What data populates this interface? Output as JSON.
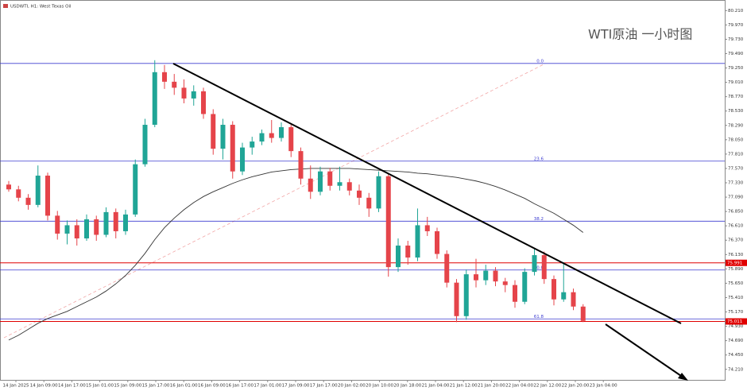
{
  "chart_data": {
    "type": "candlestick",
    "title": "USDWTI, H1: West Texas Oil",
    "annotation": "WTI原油 一小时图",
    "categories": [
      "14 Jan 2025",
      "14 Jan 09:00",
      "14 Jan 17:00",
      "15 Jan 01:00",
      "15 Jan 09:00",
      "15 Jan 17:00",
      "16 Jan 01:00",
      "16 Jan 09:00",
      "16 Jan 17:00",
      "17 Jan 01:00",
      "17 Jan 09:00",
      "17 Jan 17:00",
      "20 Jan 02:00",
      "20 Jan 10:00",
      "20 Jan 18:00",
      "21 Jan 04:00",
      "21 Jan 12:00",
      "21 Jan 20:00",
      "22 Jan 04:00",
      "22 Jan 12:00",
      "22 Jan 20:00",
      "23 Jan 04:00"
    ],
    "ylim": [
      74.034,
      80.387
    ],
    "yticks": [
      {
        "value": 80.21,
        "label": "80.210"
      },
      {
        "value": 79.97,
        "label": "79.970"
      },
      {
        "value": 79.73,
        "label": "79.730"
      },
      {
        "value": 79.49,
        "label": "79.490"
      },
      {
        "value": 79.25,
        "label": "79.250"
      },
      {
        "value": 79.01,
        "label": "79.010"
      },
      {
        "value": 78.77,
        "label": "78.770"
      },
      {
        "value": 78.53,
        "label": "78.530"
      },
      {
        "value": 78.29,
        "label": "78.290"
      },
      {
        "value": 78.05,
        "label": "78.050"
      },
      {
        "value": 77.81,
        "label": "77.810"
      },
      {
        "value": 77.57,
        "label": "77.570"
      },
      {
        "value": 77.33,
        "label": "77.330"
      },
      {
        "value": 77.09,
        "label": "77.090"
      },
      {
        "value": 76.85,
        "label": "76.850"
      },
      {
        "value": 76.61,
        "label": "76.610"
      },
      {
        "value": 76.37,
        "label": "76.370"
      },
      {
        "value": 76.13,
        "label": "76.130"
      },
      {
        "value": 75.89,
        "label": "75.890"
      },
      {
        "value": 75.65,
        "label": "75.650"
      },
      {
        "value": 75.41,
        "label": "75.410"
      },
      {
        "value": 75.17,
        "label": "75.170"
      },
      {
        "value": 74.93,
        "label": "74.930"
      },
      {
        "value": 74.69,
        "label": "74.690"
      },
      {
        "value": 74.45,
        "label": "74.450"
      },
      {
        "value": 74.21,
        "label": "74.210"
      }
    ],
    "up_color": "#20a596",
    "down_color": "#e5444a",
    "ohlc": [
      [
        77.3,
        77.36,
        77.18,
        77.22
      ],
      [
        77.22,
        77.28,
        77.02,
        77.08
      ],
      [
        77.08,
        77.14,
        76.88,
        76.96
      ],
      [
        76.96,
        77.62,
        76.92,
        77.45
      ],
      [
        77.45,
        77.5,
        76.7,
        76.78
      ],
      [
        76.78,
        76.86,
        76.38,
        76.48
      ],
      [
        76.48,
        76.7,
        76.3,
        76.62
      ],
      [
        76.62,
        76.72,
        76.28,
        76.4
      ],
      [
        76.4,
        76.8,
        76.36,
        76.72
      ],
      [
        76.72,
        76.78,
        76.36,
        76.46
      ],
      [
        76.46,
        76.92,
        76.42,
        76.84
      ],
      [
        76.84,
        76.9,
        76.4,
        76.52
      ],
      [
        76.52,
        76.88,
        76.46,
        76.8
      ],
      [
        76.8,
        77.72,
        76.76,
        77.64
      ],
      [
        77.64,
        78.4,
        77.6,
        78.3
      ],
      [
        78.3,
        79.38,
        78.26,
        79.18
      ],
      [
        79.18,
        79.3,
        78.9,
        79.02
      ],
      [
        79.02,
        79.15,
        78.8,
        78.92
      ],
      [
        78.92,
        79.06,
        78.66,
        78.74
      ],
      [
        78.74,
        78.96,
        78.62,
        78.86
      ],
      [
        78.86,
        78.92,
        78.4,
        78.48
      ],
      [
        78.48,
        78.56,
        77.8,
        77.9
      ],
      [
        77.9,
        78.4,
        77.72,
        78.3
      ],
      [
        78.3,
        78.36,
        77.4,
        77.52
      ],
      [
        77.52,
        78.0,
        77.46,
        77.92
      ],
      [
        77.92,
        78.1,
        77.8,
        78.02
      ],
      [
        78.02,
        78.22,
        77.96,
        78.16
      ],
      [
        78.16,
        78.38,
        78.0,
        78.08
      ],
      [
        78.08,
        78.34,
        78.02,
        78.26
      ],
      [
        78.26,
        78.3,
        77.76,
        77.86
      ],
      [
        77.86,
        77.92,
        77.3,
        77.4
      ],
      [
        77.4,
        77.62,
        77.06,
        77.18
      ],
      [
        77.18,
        77.6,
        77.12,
        77.52
      ],
      [
        77.52,
        77.58,
        77.2,
        77.28
      ],
      [
        77.28,
        77.6,
        77.2,
        77.34
      ],
      [
        77.34,
        77.4,
        77.12,
        77.2
      ],
      [
        77.2,
        77.3,
        76.96,
        77.08
      ],
      [
        77.08,
        77.16,
        76.76,
        76.9
      ],
      [
        76.9,
        77.52,
        76.84,
        77.44
      ],
      [
        77.44,
        77.48,
        75.76,
        75.92
      ],
      [
        75.92,
        76.4,
        75.84,
        76.28
      ],
      [
        76.28,
        76.36,
        75.96,
        76.08
      ],
      [
        76.08,
        76.9,
        76.02,
        76.62
      ],
      [
        76.62,
        76.76,
        76.44,
        76.52
      ],
      [
        76.52,
        76.58,
        76.06,
        76.14
      ],
      [
        76.14,
        76.2,
        75.58,
        75.66
      ],
      [
        75.66,
        75.72,
        75.0,
        75.1
      ],
      [
        75.1,
        75.88,
        75.04,
        75.8
      ],
      [
        75.8,
        76.06,
        75.58,
        75.7
      ],
      [
        75.7,
        75.96,
        75.62,
        75.86
      ],
      [
        75.86,
        75.92,
        75.6,
        75.68
      ],
      [
        75.68,
        75.74,
        75.5,
        75.62
      ],
      [
        75.62,
        75.7,
        75.24,
        75.34
      ],
      [
        75.34,
        75.9,
        75.3,
        75.84
      ],
      [
        75.84,
        76.24,
        75.78,
        76.12
      ],
      [
        76.12,
        76.18,
        75.64,
        75.72
      ],
      [
        75.72,
        75.78,
        75.28,
        75.38
      ],
      [
        75.38,
        76.0,
        75.34,
        75.5
      ],
      [
        75.5,
        75.56,
        75.2,
        75.26
      ],
      [
        75.26,
        75.3,
        75.0,
        75.02
      ]
    ],
    "ma": {
      "color": "#333333",
      "values": [
        74.7,
        74.78,
        74.88,
        74.98,
        75.06,
        75.12,
        75.18,
        75.26,
        75.34,
        75.42,
        75.52,
        75.64,
        75.78,
        75.95,
        76.15,
        76.38,
        76.58,
        76.74,
        76.88,
        77.0,
        77.1,
        77.18,
        77.25,
        77.32,
        77.38,
        77.43,
        77.47,
        77.51,
        77.53,
        77.55,
        77.56,
        77.57,
        77.57,
        77.57,
        77.57,
        77.57,
        77.56,
        77.55,
        77.54,
        77.53,
        77.52,
        77.51,
        77.49,
        77.48,
        77.46,
        77.44,
        77.42,
        77.39,
        77.36,
        77.32,
        77.27,
        77.21,
        77.14,
        77.07,
        76.98,
        76.9,
        76.82,
        76.72,
        76.62,
        76.5
      ]
    },
    "fib_color": "#3c3cd0",
    "fib_levels": [
      {
        "label": "0.0",
        "value": 79.326
      },
      {
        "label": "23.6",
        "value": 77.692
      },
      {
        "label": "38.2",
        "value": 76.688
      },
      {
        "label": "50.0",
        "value": 75.871
      },
      {
        "label": "61.8",
        "value": 75.054
      }
    ],
    "price_line_color": "#e00000",
    "price_lines": [
      75.991,
      75.011
    ]
  }
}
